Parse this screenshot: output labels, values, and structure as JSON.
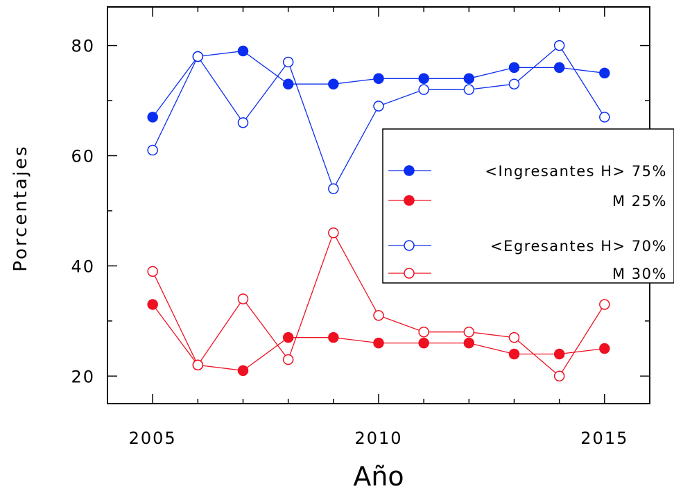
{
  "chart_data": {
    "type": "line",
    "title": "",
    "xlabel": "Año",
    "ylabel": "Porcentajes",
    "xlim": [
      2004,
      2016
    ],
    "ylim": [
      15,
      87
    ],
    "xticks": [
      2005,
      2010,
      2015
    ],
    "yticks": [
      20,
      40,
      60,
      80
    ],
    "x": [
      2005,
      2006,
      2007,
      2008,
      2009,
      2010,
      2011,
      2012,
      2013,
      2014,
      2015
    ],
    "series": [
      {
        "key": "ing_h",
        "color": "#0a2ef0",
        "marker": "filled",
        "values": [
          67,
          78,
          79,
          73,
          73,
          74,
          74,
          74,
          76,
          76,
          75
        ]
      },
      {
        "key": "ing_m",
        "color": "#ee1122",
        "marker": "filled",
        "values": [
          33,
          22,
          21,
          27,
          27,
          26,
          26,
          26,
          24,
          24,
          25
        ]
      },
      {
        "key": "egr_h",
        "color": "#0a2ef0",
        "marker": "open",
        "values": [
          61,
          78,
          66,
          77,
          54,
          69,
          72,
          72,
          73,
          80,
          67
        ]
      },
      {
        "key": "egr_m",
        "color": "#ee1122",
        "marker": "open",
        "values": [
          39,
          22,
          34,
          23,
          46,
          31,
          28,
          28,
          27,
          20,
          33
        ]
      }
    ],
    "legend": {
      "position": "right",
      "entries": [
        {
          "series": "ing_h",
          "text": "<Ingresantes H>   75%"
        },
        {
          "series": "ing_m",
          "text": "M   25%"
        },
        {
          "series": "egr_h",
          "text": "<Egresantes  H>  70%"
        },
        {
          "series": "egr_m",
          "text": "M   30%"
        }
      ]
    }
  }
}
